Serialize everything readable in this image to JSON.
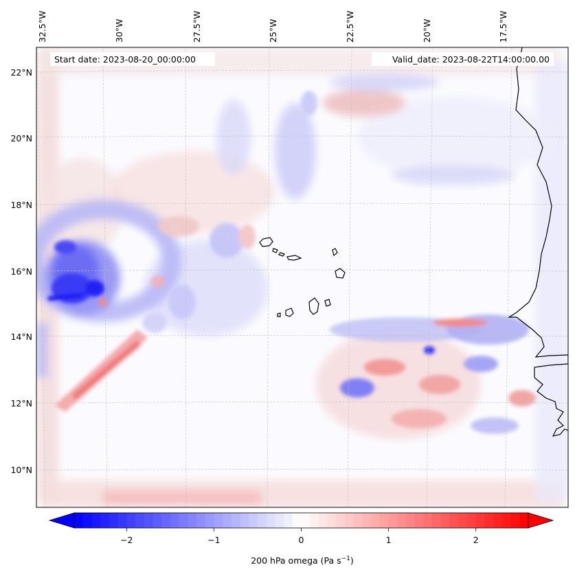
{
  "map": {
    "start_date": "Start date: 2023-08-20_00:00:00",
    "valid_date": "Valid_date: 2023-08-22T14:00:00.00",
    "lon_labels": [
      "32.5°W",
      "30°W",
      "27.5°W",
      "25°W",
      "22.5°W",
      "20°W",
      "17.5°W"
    ],
    "lat_labels": [
      "22°N",
      "20°N",
      "18°N",
      "16°N",
      "14°N",
      "12°N",
      "10°N"
    ],
    "gridlines": true
  },
  "colorbar": {
    "ticks": [
      "−2",
      "−1",
      "0",
      "1",
      "2"
    ],
    "label_main": "200 hPa omega (Pa s",
    "label_sup": "−1",
    "label_close": ")",
    "colors": {
      "min": "#0000ff",
      "mid": "#ffffff",
      "max": "#ff0000"
    },
    "range": [
      -2.6,
      2.6
    ],
    "extend": "both"
  }
}
